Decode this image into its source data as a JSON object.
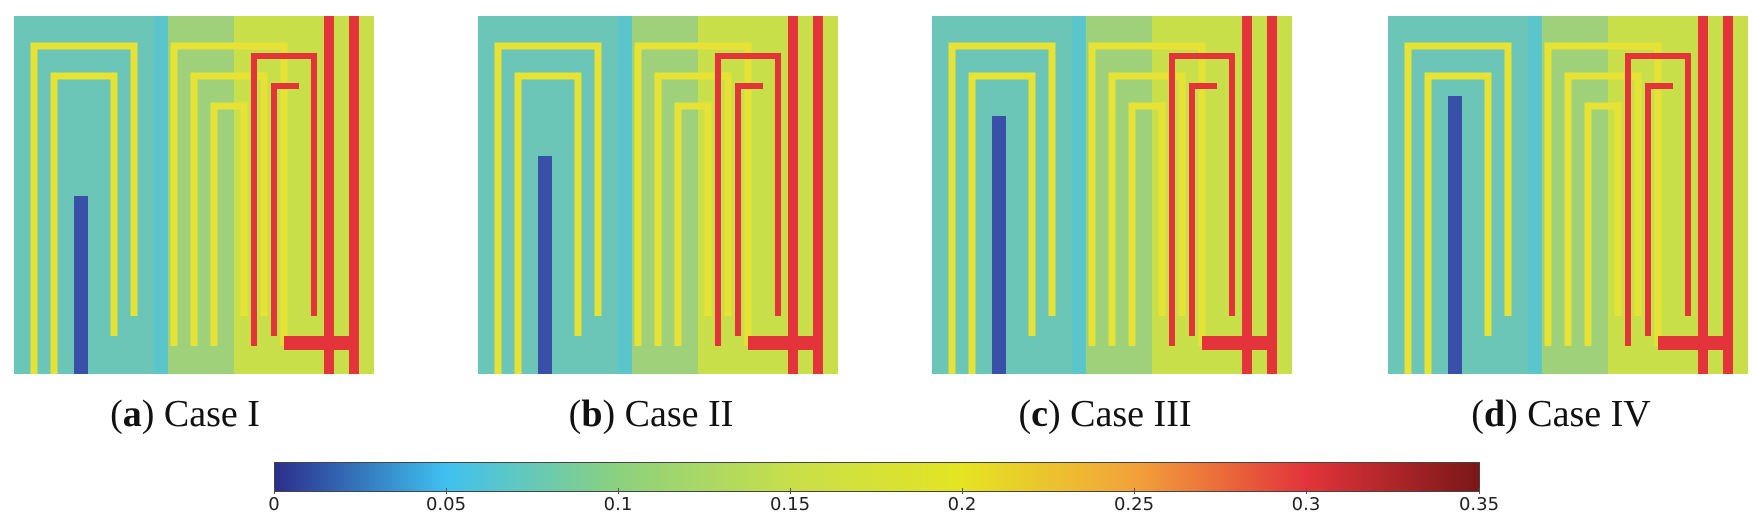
{
  "colors": {
    "dark_blue": "#2b2e8c",
    "cyan": "#3fc1f0",
    "mid": "#8cd17e",
    "green_yellow": "#c8df4a",
    "yellow": "#e4e422",
    "orange": "#f2a23a",
    "red": "#e2343a",
    "dark_red": "#7a1718"
  },
  "panels": [
    {
      "label": "a",
      "text": " Case I"
    },
    {
      "label": "b",
      "text": " Case II"
    },
    {
      "label": "c",
      "text": " Case III"
    },
    {
      "label": "d",
      "text": " Case IV"
    }
  ],
  "colorbar": {
    "min": 0,
    "max": 0.35,
    "ticks": [
      "0",
      "0.05",
      "0.1",
      "0.15",
      "0.2",
      "0.25",
      "0.3",
      "0.35"
    ]
  }
}
